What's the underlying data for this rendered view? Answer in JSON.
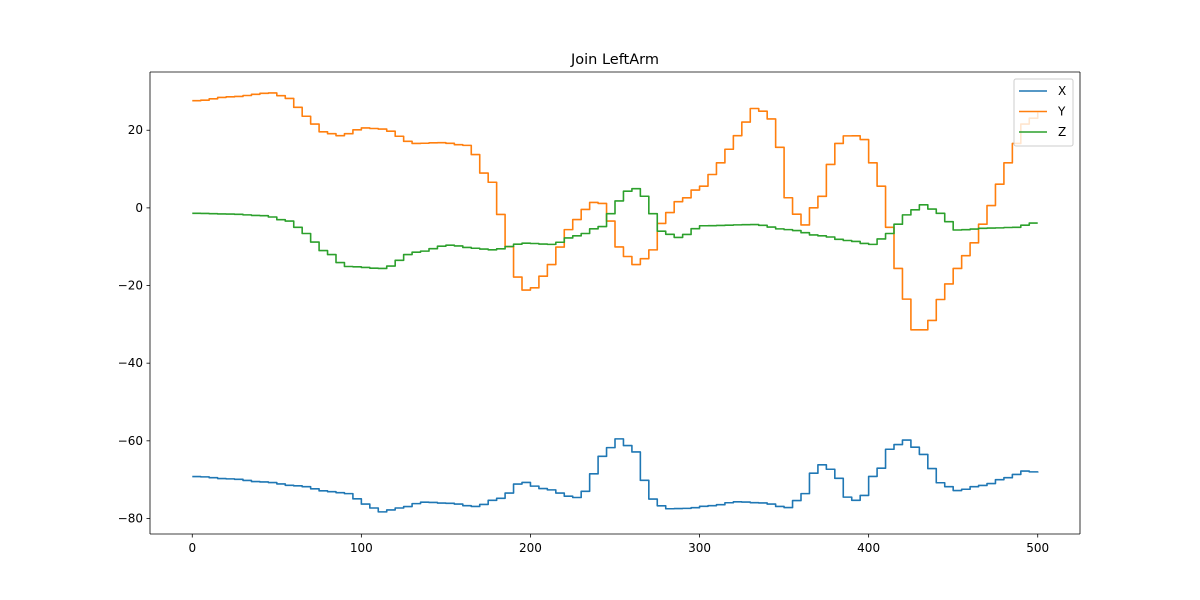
{
  "chart_data": {
    "type": "line",
    "title": "Join LeftArm",
    "xlabel": "",
    "ylabel": "",
    "xlim": [
      -25,
      525
    ],
    "ylim": [
      -84,
      35
    ],
    "xticks": [
      0,
      100,
      200,
      300,
      400,
      500
    ],
    "yticks": [
      -80,
      -60,
      -40,
      -20,
      0,
      20
    ],
    "xtick_labels": [
      "0",
      "100",
      "200",
      "300",
      "400",
      "500"
    ],
    "ytick_labels": [
      "−80",
      "−60",
      "−40",
      "−20",
      "0",
      "20"
    ],
    "grid": false,
    "legend_position": "top-right",
    "step": 5,
    "series": [
      {
        "name": "X",
        "color": "#1f77b4",
        "points": [
          [
            0,
            -69.2
          ],
          [
            20,
            -69.8
          ],
          [
            40,
            -70.6
          ],
          [
            60,
            -71.6
          ],
          [
            80,
            -73.1
          ],
          [
            90,
            -73.6
          ],
          [
            100,
            -76.3
          ],
          [
            110,
            -78.3
          ],
          [
            120,
            -77.3
          ],
          [
            135,
            -75.8
          ],
          [
            150,
            -76.1
          ],
          [
            165,
            -76.9
          ],
          [
            180,
            -74.8
          ],
          [
            193,
            -70.6
          ],
          [
            205,
            -72.3
          ],
          [
            225,
            -74.6
          ],
          [
            230,
            -73
          ],
          [
            240,
            -64
          ],
          [
            250,
            -59.5
          ],
          [
            258,
            -62
          ],
          [
            270,
            -75
          ],
          [
            278,
            -77.5
          ],
          [
            290,
            -77.4
          ],
          [
            305,
            -76.7
          ],
          [
            320,
            -75.7
          ],
          [
            335,
            -76
          ],
          [
            350,
            -77.2
          ],
          [
            360,
            -73.6
          ],
          [
            368,
            -66
          ],
          [
            377,
            -67.5
          ],
          [
            385,
            -74.5
          ],
          [
            392,
            -75.5
          ],
          [
            402,
            -68.5
          ],
          [
            412,
            -61.5
          ],
          [
            420,
            -59.8
          ],
          [
            430,
            -63.5
          ],
          [
            440,
            -70.8
          ],
          [
            450,
            -72.8
          ],
          [
            465,
            -71.5
          ],
          [
            480,
            -69.5
          ],
          [
            490,
            -67.8
          ],
          [
            500,
            -68.2
          ]
        ]
      },
      {
        "name": "Y",
        "color": "#ff7f0e",
        "points": [
          [
            0,
            27.6
          ],
          [
            20,
            28.6
          ],
          [
            45,
            29.6
          ],
          [
            55,
            28.2
          ],
          [
            65,
            23.6
          ],
          [
            75,
            19.6
          ],
          [
            85,
            18.6
          ],
          [
            100,
            20.6
          ],
          [
            110,
            20.3
          ],
          [
            130,
            16.6
          ],
          [
            145,
            16.8
          ],
          [
            160,
            16.1
          ],
          [
            175,
            6.6
          ],
          [
            185,
            -10
          ],
          [
            193,
            -21.3
          ],
          [
            200,
            -20.6
          ],
          [
            210,
            -14.6
          ],
          [
            220,
            -5.6
          ],
          [
            230,
            -0.4
          ],
          [
            238,
            2.2
          ],
          [
            245,
            -3.4
          ],
          [
            252,
            -11.6
          ],
          [
            260,
            -14.6
          ],
          [
            268,
            -12.4
          ],
          [
            275,
            -4
          ],
          [
            285,
            1.6
          ],
          [
            300,
            5.6
          ],
          [
            310,
            11.6
          ],
          [
            320,
            18.6
          ],
          [
            330,
            25.6
          ],
          [
            338,
            24.6
          ],
          [
            345,
            15.6
          ],
          [
            352,
            -0.4
          ],
          [
            360,
            -4.4
          ],
          [
            368,
            2
          ],
          [
            380,
            16.6
          ],
          [
            387,
            19
          ],
          [
            395,
            17.6
          ],
          [
            405,
            5.6
          ],
          [
            415,
            -15.6
          ],
          [
            425,
            -31.4
          ],
          [
            432,
            -31.4
          ],
          [
            440,
            -23.6
          ],
          [
            450,
            -15.6
          ],
          [
            460,
            -9
          ],
          [
            470,
            0.6
          ],
          [
            480,
            11.6
          ],
          [
            490,
            21.6
          ],
          [
            500,
            24.6
          ]
        ]
      },
      {
        "name": "Z",
        "color": "#2ca02c",
        "points": [
          [
            0,
            -1.4
          ],
          [
            20,
            -1.6
          ],
          [
            40,
            -2
          ],
          [
            55,
            -3.4
          ],
          [
            65,
            -6.6
          ],
          [
            75,
            -11
          ],
          [
            90,
            -15.1
          ],
          [
            110,
            -15.6
          ],
          [
            130,
            -11.4
          ],
          [
            150,
            -9.6
          ],
          [
            165,
            -10.4
          ],
          [
            175,
            -10.8
          ],
          [
            195,
            -9.1
          ],
          [
            210,
            -9.4
          ],
          [
            225,
            -7.2
          ],
          [
            240,
            -4.8
          ],
          [
            250,
            1.8
          ],
          [
            258,
            5.4
          ],
          [
            265,
            3
          ],
          [
            275,
            -6
          ],
          [
            285,
            -7.6
          ],
          [
            300,
            -4.6
          ],
          [
            330,
            -4.3
          ],
          [
            350,
            -5.6
          ],
          [
            370,
            -7.2
          ],
          [
            385,
            -8.4
          ],
          [
            400,
            -9.4
          ],
          [
            410,
            -6.6
          ],
          [
            420,
            -1.8
          ],
          [
            430,
            0.8
          ],
          [
            440,
            -1.4
          ],
          [
            450,
            -5.7
          ],
          [
            470,
            -5.2
          ],
          [
            485,
            -5
          ],
          [
            495,
            -3.9
          ],
          [
            500,
            -3.9
          ]
        ]
      }
    ]
  }
}
